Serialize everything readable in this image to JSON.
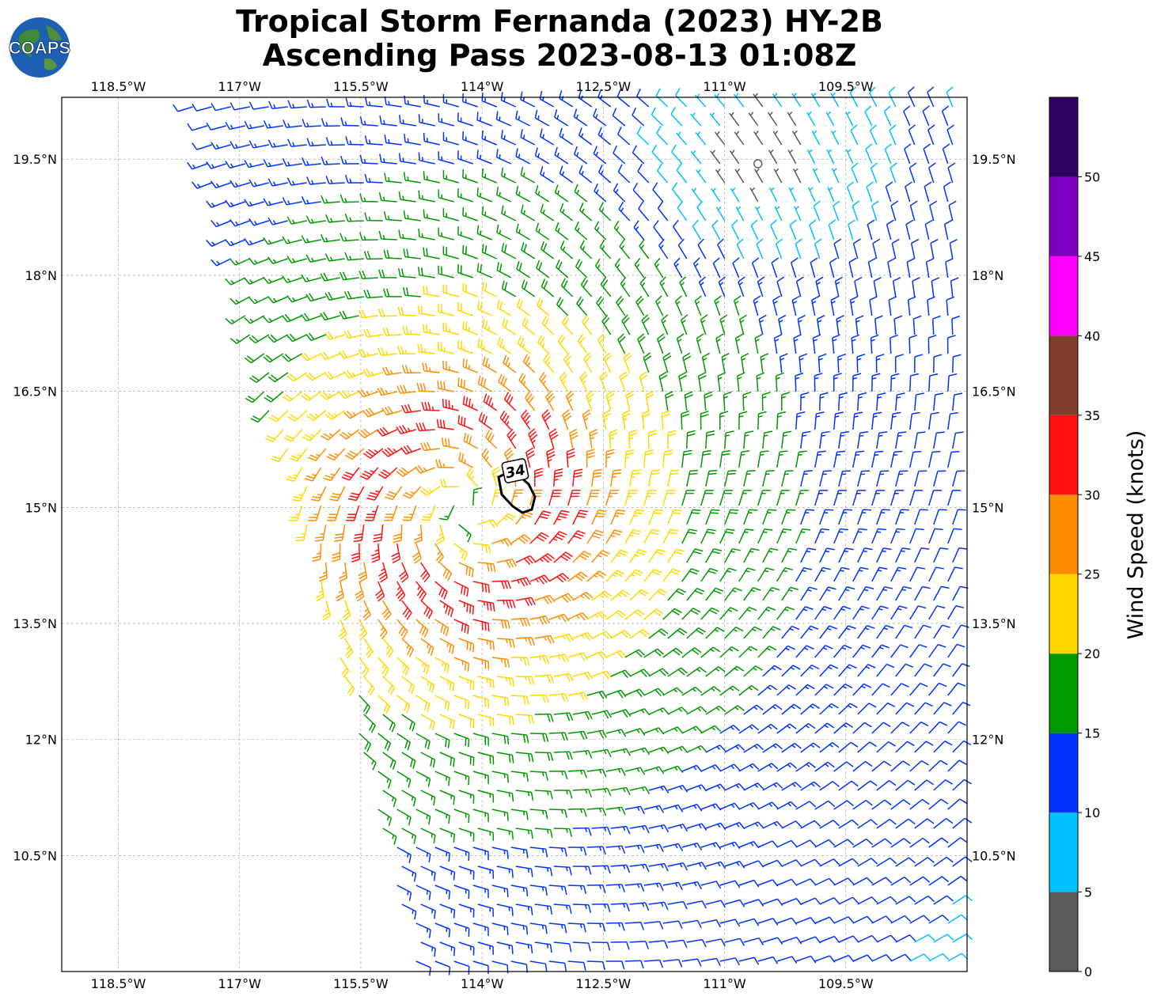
{
  "title": {
    "line1": "Tropical Storm Fernanda (2023) HY-2B",
    "line2": "Ascending Pass 2023-08-13 01:08Z"
  },
  "logo": {
    "text": "COAPS",
    "icon": "globe-icon"
  },
  "axes": {
    "lon_labels": [
      "118.5°W",
      "117°W",
      "115.5°W",
      "114°W",
      "112.5°W",
      "111°W",
      "109.5°W"
    ],
    "lon_values": [
      -118.5,
      -117,
      -115.5,
      -114,
      -112.5,
      -111,
      -109.5
    ],
    "lat_labels": [
      "19.5°N",
      "18°N",
      "16.5°N",
      "15°N",
      "13.5°N",
      "12°N",
      "10.5°N"
    ],
    "lat_values": [
      19.5,
      18,
      16.5,
      15,
      13.5,
      12,
      10.5
    ],
    "lon_range": [
      -119.2,
      -108.0
    ],
    "lat_range": [
      9.0,
      20.3
    ],
    "grid": true
  },
  "storm": {
    "center_lon": -114.2,
    "center_lat": 15.0,
    "contour_label": "34"
  },
  "colorbar": {
    "title": "Wind Speed (knots)",
    "tick_labels": [
      "0",
      "5",
      "10",
      "15",
      "20",
      "25",
      "30",
      "35",
      "40",
      "45",
      "50"
    ],
    "bins": [
      {
        "min": 0,
        "max": 5,
        "color": "#595959"
      },
      {
        "min": 5,
        "max": 10,
        "color": "#00bfff"
      },
      {
        "min": 10,
        "max": 15,
        "color": "#0033ff"
      },
      {
        "min": 15,
        "max": 20,
        "color": "#009900"
      },
      {
        "min": 20,
        "max": 25,
        "color": "#ffd700"
      },
      {
        "min": 25,
        "max": 30,
        "color": "#ff8c00"
      },
      {
        "min": 30,
        "max": 35,
        "color": "#ff1010"
      },
      {
        "min": 35,
        "max": 40,
        "color": "#803d2b"
      },
      {
        "min": 40,
        "max": 45,
        "color": "#ff00ff"
      },
      {
        "min": 45,
        "max": 50,
        "color": "#8000c0"
      },
      {
        "min": 50,
        "max": 55,
        "color": "#300060"
      }
    ]
  }
}
